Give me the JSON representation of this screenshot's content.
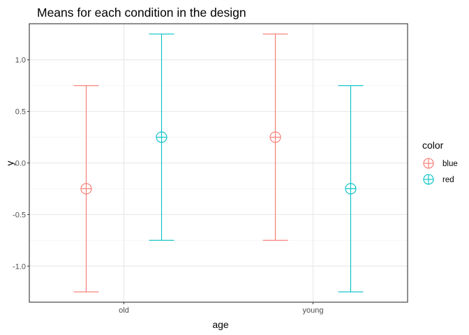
{
  "chart_data": {
    "type": "errorbar",
    "title": "Means for each condition in the design",
    "xlabel": "age",
    "ylabel": "y",
    "categories": [
      "old",
      "young"
    ],
    "ylim": [
      -1.35,
      1.35
    ],
    "yticks": [
      -1.0,
      -0.5,
      0.0,
      0.5,
      1.0
    ],
    "ytick_labels": [
      "-1.0",
      "-0.5",
      "0.0",
      "0.5",
      "1.0"
    ],
    "grid": true,
    "legend": {
      "title": "color",
      "position": "right"
    },
    "series": [
      {
        "name": "blue",
        "color": "#F8766D",
        "points": [
          {
            "category": "old",
            "mean": -0.25,
            "lower": -1.25,
            "upper": 0.75
          },
          {
            "category": "young",
            "mean": 0.25,
            "lower": -0.75,
            "upper": 1.25
          }
        ]
      },
      {
        "name": "red",
        "color": "#00BFC4",
        "points": [
          {
            "category": "old",
            "mean": 0.25,
            "lower": -0.75,
            "upper": 1.25
          },
          {
            "category": "young",
            "mean": -0.25,
            "lower": -1.25,
            "upper": 0.75
          }
        ]
      }
    ]
  }
}
